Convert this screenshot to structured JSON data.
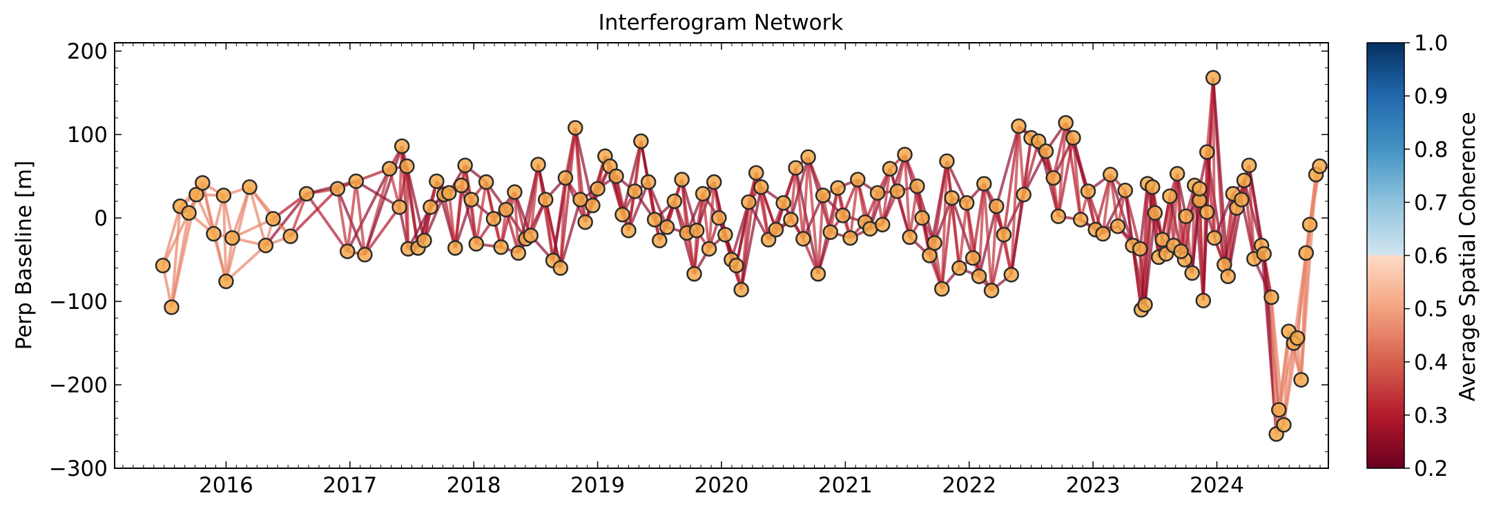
{
  "chart_data": {
    "type": "scatter",
    "title": "Interferogram Network",
    "ylabel": "Perp Baseline [m]",
    "xlabel": "",
    "x_ticks": [
      "2016",
      "2017",
      "2018",
      "2019",
      "2020",
      "2021",
      "2022",
      "2023",
      "2024"
    ],
    "xlim": [
      2015.1,
      2024.9
    ],
    "ylim": [
      -300,
      210
    ],
    "y_ticks": [
      200,
      100,
      0,
      -100,
      -200,
      -300
    ],
    "y_tick_labels": [
      "200",
      "100",
      "0",
      "−100",
      "−200",
      "−300"
    ],
    "grid": false,
    "colorbar": {
      "label": "Average Spatial Coherence",
      "range": [
        0.2,
        1.0
      ],
      "ticks": [
        1.0,
        0.9,
        0.8,
        0.7,
        0.6,
        0.5,
        0.4,
        0.3,
        0.2
      ],
      "tick_labels": [
        "1.0",
        "0.9",
        "0.8",
        "0.7",
        "0.6",
        "0.5",
        "0.4",
        "0.3",
        "0.2"
      ],
      "colormap": "RdBu",
      "threshold": 0.7
    },
    "acquisitions": [
      [
        2015.49,
        -57
      ],
      [
        2015.56,
        -107
      ],
      [
        2015.63,
        14
      ],
      [
        2015.7,
        6
      ],
      [
        2015.76,
        28
      ],
      [
        2015.81,
        42
      ],
      [
        2015.9,
        -19
      ],
      [
        2015.98,
        27
      ],
      [
        2016.0,
        -76
      ],
      [
        2016.05,
        -24
      ],
      [
        2016.19,
        37
      ],
      [
        2016.32,
        -33
      ],
      [
        2016.38,
        -1
      ],
      [
        2016.52,
        -22
      ],
      [
        2016.65,
        29
      ],
      [
        2016.9,
        35
      ],
      [
        2017.05,
        44
      ],
      [
        2016.98,
        -40
      ],
      [
        2017.12,
        -44
      ],
      [
        2017.32,
        59
      ],
      [
        2017.4,
        13
      ],
      [
        2017.46,
        62
      ],
      [
        2017.42,
        86
      ],
      [
        2017.47,
        -37
      ],
      [
        2017.55,
        -36
      ],
      [
        2017.6,
        -27
      ],
      [
        2017.65,
        13
      ],
      [
        2017.7,
        44
      ],
      [
        2017.76,
        28
      ],
      [
        2017.8,
        30
      ],
      [
        2017.85,
        -36
      ],
      [
        2017.9,
        39
      ],
      [
        2017.93,
        63
      ],
      [
        2017.98,
        22
      ],
      [
        2018.02,
        -31
      ],
      [
        2018.1,
        43
      ],
      [
        2018.16,
        -1
      ],
      [
        2018.22,
        -35
      ],
      [
        2018.26,
        10
      ],
      [
        2018.33,
        31
      ],
      [
        2018.36,
        -42
      ],
      [
        2018.42,
        -25
      ],
      [
        2018.46,
        -21
      ],
      [
        2018.52,
        64
      ],
      [
        2018.58,
        22
      ],
      [
        2018.64,
        -51
      ],
      [
        2018.7,
        -60
      ],
      [
        2018.74,
        48
      ],
      [
        2018.82,
        108
      ],
      [
        2018.86,
        22
      ],
      [
        2018.9,
        -5
      ],
      [
        2018.96,
        15
      ],
      [
        2019.0,
        35
      ],
      [
        2019.06,
        74
      ],
      [
        2019.1,
        62
      ],
      [
        2019.15,
        50
      ],
      [
        2019.2,
        4
      ],
      [
        2019.25,
        -15
      ],
      [
        2019.3,
        32
      ],
      [
        2019.35,
        92
      ],
      [
        2019.41,
        43
      ],
      [
        2019.46,
        -2
      ],
      [
        2019.5,
        -27
      ],
      [
        2019.56,
        -11
      ],
      [
        2019.62,
        20
      ],
      [
        2019.68,
        46
      ],
      [
        2019.72,
        -18
      ],
      [
        2019.78,
        -67
      ],
      [
        2019.8,
        -15
      ],
      [
        2019.85,
        29
      ],
      [
        2019.9,
        -37
      ],
      [
        2019.94,
        43
      ],
      [
        2019.98,
        0
      ],
      [
        2020.03,
        -20
      ],
      [
        2020.08,
        -50
      ],
      [
        2020.12,
        -57
      ],
      [
        2020.16,
        -86
      ],
      [
        2020.22,
        19
      ],
      [
        2020.28,
        54
      ],
      [
        2020.32,
        37
      ],
      [
        2020.38,
        -26
      ],
      [
        2020.44,
        -14
      ],
      [
        2020.5,
        18
      ],
      [
        2020.56,
        -2
      ],
      [
        2020.6,
        60
      ],
      [
        2020.66,
        -25
      ],
      [
        2020.7,
        73
      ],
      [
        2020.78,
        -67
      ],
      [
        2020.82,
        27
      ],
      [
        2020.88,
        -17
      ],
      [
        2020.94,
        36
      ],
      [
        2020.98,
        3
      ],
      [
        2021.04,
        -24
      ],
      [
        2021.1,
        46
      ],
      [
        2021.16,
        -5
      ],
      [
        2021.2,
        -13
      ],
      [
        2021.26,
        30
      ],
      [
        2021.3,
        -8
      ],
      [
        2021.36,
        59
      ],
      [
        2021.42,
        32
      ],
      [
        2021.48,
        76
      ],
      [
        2021.52,
        -23
      ],
      [
        2021.58,
        38
      ],
      [
        2021.62,
        0
      ],
      [
        2021.68,
        -45
      ],
      [
        2021.72,
        -30
      ],
      [
        2021.78,
        -85
      ],
      [
        2021.82,
        68
      ],
      [
        2021.86,
        24
      ],
      [
        2021.92,
        -60
      ],
      [
        2021.98,
        18
      ],
      [
        2022.03,
        -48
      ],
      [
        2022.08,
        -70
      ],
      [
        2022.12,
        41
      ],
      [
        2022.18,
        -87
      ],
      [
        2022.22,
        14
      ],
      [
        2022.28,
        -20
      ],
      [
        2022.34,
        -68
      ],
      [
        2022.4,
        110
      ],
      [
        2022.44,
        28
      ],
      [
        2022.5,
        96
      ],
      [
        2022.56,
        92
      ],
      [
        2022.62,
        80
      ],
      [
        2022.68,
        48
      ],
      [
        2022.72,
        2
      ],
      [
        2022.78,
        114
      ],
      [
        2022.84,
        96
      ],
      [
        2022.9,
        -2
      ],
      [
        2022.96,
        32
      ],
      [
        2023.02,
        -14
      ],
      [
        2023.08,
        -19
      ],
      [
        2023.14,
        52
      ],
      [
        2023.2,
        -10
      ],
      [
        2023.26,
        33
      ],
      [
        2023.32,
        -33
      ],
      [
        2023.38,
        -37
      ],
      [
        2023.44,
        41
      ],
      [
        2023.5,
        6
      ],
      [
        2023.56,
        -26
      ],
      [
        2023.62,
        26
      ],
      [
        2023.68,
        53
      ],
      [
        2023.74,
        -50
      ],
      [
        2023.8,
        -66
      ],
      [
        2023.86,
        21
      ],
      [
        2023.92,
        7
      ],
      [
        2023.98,
        -24
      ],
      [
        2023.39,
        -110
      ],
      [
        2023.42,
        -104
      ],
      [
        2023.48,
        37
      ],
      [
        2023.53,
        -47
      ],
      [
        2023.59,
        -43
      ],
      [
        2023.65,
        -33
      ],
      [
        2023.71,
        -40
      ],
      [
        2023.75,
        2
      ],
      [
        2023.82,
        39
      ],
      [
        2023.86,
        35
      ],
      [
        2023.89,
        -99
      ],
      [
        2023.97,
        168
      ],
      [
        2023.92,
        79
      ],
      [
        2024.06,
        -56
      ],
      [
        2024.09,
        -70
      ],
      [
        2024.13,
        29
      ],
      [
        2024.16,
        12
      ],
      [
        2024.2,
        22
      ],
      [
        2024.22,
        45
      ],
      [
        2024.26,
        63
      ],
      [
        2024.3,
        -49
      ],
      [
        2024.36,
        -33
      ],
      [
        2024.38,
        -43
      ],
      [
        2024.44,
        -95
      ],
      [
        2024.5,
        -230
      ],
      [
        2024.48,
        -259
      ],
      [
        2024.54,
        -248
      ],
      [
        2024.58,
        -136
      ],
      [
        2024.62,
        -150
      ],
      [
        2024.65,
        -144
      ],
      [
        2024.68,
        -194
      ],
      [
        2024.72,
        -42
      ],
      [
        2024.75,
        -8
      ],
      [
        2024.8,
        52
      ],
      [
        2024.83,
        62
      ]
    ]
  }
}
